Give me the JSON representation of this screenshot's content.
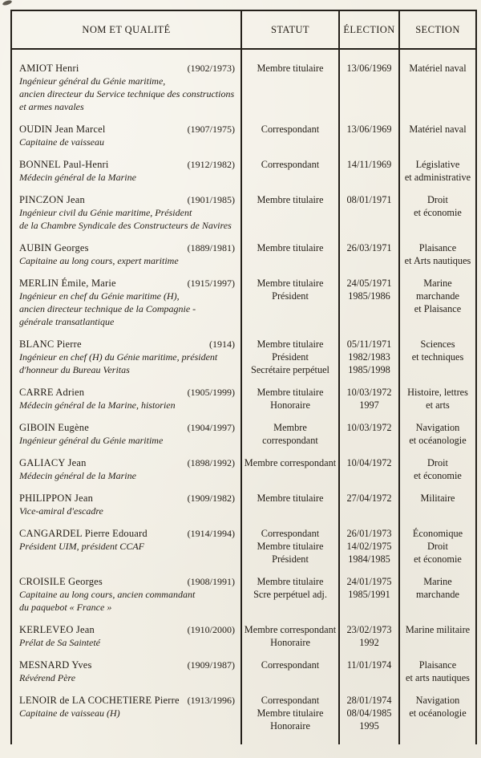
{
  "colors": {
    "paper": "#f3f0e6",
    "ink": "#221c15",
    "line": "#24201a"
  },
  "table": {
    "columns": [
      "NOM ET QUALITÉ",
      "STATUT",
      "ÉLECTION",
      "SECTION"
    ],
    "rows": [
      {
        "name": "AMIOT Henri",
        "years": "(1902/1973)",
        "description": [
          "Ingénieur général du Génie maritime,",
          "ancien directeur du Service technique des constructions",
          "et armes navales"
        ],
        "statut": [
          "Membre titulaire"
        ],
        "election": [
          "13/06/1969"
        ],
        "section": [
          "Matériel naval"
        ]
      },
      {
        "name": "OUDIN Jean Marcel",
        "years": "(1907/1975)",
        "description": [
          "Capitaine de vaisseau"
        ],
        "statut": [
          "Correspondant"
        ],
        "election": [
          "13/06/1969"
        ],
        "section": [
          "Matériel naval"
        ]
      },
      {
        "name": "BONNEL Paul-Henri",
        "years": "(1912/1982)",
        "description": [
          "Médecin général de la Marine"
        ],
        "statut": [
          "Correspondant"
        ],
        "election": [
          "14/11/1969"
        ],
        "section": [
          "Législative",
          "et administrative"
        ]
      },
      {
        "name": "PINCZON Jean",
        "years": "(1901/1985)",
        "description": [
          "Ingénieur civil du Génie maritime, Président",
          "de la Chambre Syndicale des Constructeurs de Navires"
        ],
        "statut": [
          "Membre titulaire"
        ],
        "election": [
          "08/01/1971"
        ],
        "section": [
          "Droit",
          "et économie"
        ]
      },
      {
        "name": "AUBIN Georges",
        "years": "(1889/1981)",
        "description": [
          "Capitaine au long cours, expert maritime"
        ],
        "statut": [
          "Membre titulaire"
        ],
        "election": [
          "26/03/1971"
        ],
        "section": [
          "Plaisance",
          "et Arts nautiques"
        ]
      },
      {
        "name": "MERLIN Émile, Marie",
        "years": "(1915/1997)",
        "description": [
          "Ingénieur en chef du Génie maritime (H),",
          "ancien directeur technique de la Compagnie -",
          "générale transatlantique"
        ],
        "statut": [
          "Membre titulaire",
          "Président"
        ],
        "election": [
          "24/05/1971",
          "1985/1986"
        ],
        "section": [
          "Marine",
          "marchande",
          "et Plaisance"
        ]
      },
      {
        "name": "BLANC Pierre",
        "years": "(1914)",
        "description": [
          "Ingénieur en chef (H) du Génie maritime, président",
          "d'honneur du Bureau Veritas"
        ],
        "statut": [
          "Membre titulaire",
          "Président",
          "Secrétaire perpétuel"
        ],
        "election": [
          "05/11/1971",
          "1982/1983",
          "1985/1998"
        ],
        "section": [
          "Sciences",
          "et techniques"
        ]
      },
      {
        "name": "CARRE Adrien",
        "years": "(1905/1999)",
        "description": [
          "Médecin général de la Marine, historien"
        ],
        "statut": [
          "Membre titulaire",
          "Honoraire"
        ],
        "election": [
          "10/03/1972",
          "1997"
        ],
        "section": [
          "Histoire, lettres",
          "et arts"
        ]
      },
      {
        "name": "GIBOIN Eugène",
        "years": "(1904/1997)",
        "description": [
          "Ingénieur général du Génie maritime"
        ],
        "statut": [
          "Membre",
          "correspondant"
        ],
        "election": [
          "10/03/1972"
        ],
        "section": [
          "Navigation",
          "et océanologie"
        ]
      },
      {
        "name": "GALIACY Jean",
        "years": "(1898/1992)",
        "description": [
          "Médecin général de la Marine"
        ],
        "statut": [
          "Membre correspondant"
        ],
        "election": [
          "10/04/1972"
        ],
        "section": [
          "Droit",
          "et économie"
        ]
      },
      {
        "name": "PHILIPPON Jean",
        "years": "(1909/1982)",
        "description": [
          "Vice-amiral d'escadre"
        ],
        "statut": [
          "Membre titulaire"
        ],
        "election": [
          "27/04/1972"
        ],
        "section": [
          "Militaire"
        ]
      },
      {
        "name": "CANGARDEL Pierre Edouard",
        "years": "(1914/1994)",
        "description": [
          "Président UIM, président CCAF"
        ],
        "statut": [
          "Correspondant",
          "Membre titulaire",
          "Président"
        ],
        "election": [
          "26/01/1973",
          "14/02/1975",
          "1984/1985"
        ],
        "section": [
          "Économique",
          "Droit",
          "et économie"
        ]
      },
      {
        "name": "CROISILE Georges",
        "years": "(1908/1991)",
        "description": [
          "Capitaine au long cours, ancien commandant",
          "du paquebot « France »"
        ],
        "statut": [
          "Membre titulaire",
          "Scre perpétuel adj."
        ],
        "election": [
          "24/01/1975",
          "1985/1991"
        ],
        "section": [
          "Marine",
          "marchande"
        ]
      },
      {
        "name": "KERLEVEO Jean",
        "years": "(1910/2000)",
        "description": [
          "Prélat de Sa Sainteté"
        ],
        "statut": [
          "Membre correspondant",
          "Honoraire"
        ],
        "election": [
          "23/02/1973",
          "1992"
        ],
        "section": [
          "Marine militaire"
        ]
      },
      {
        "name": "MESNARD Yves",
        "years": "(1909/1987)",
        "description": [
          "Révérend Père"
        ],
        "statut": [
          "Correspondant"
        ],
        "election": [
          "11/01/1974"
        ],
        "section": [
          "Plaisance",
          "et arts nautiques"
        ]
      },
      {
        "name": "LENOIR de LA COCHETIERE Pierre",
        "years": "(1913/1996)",
        "description": [
          "Capitaine de vaisseau (H)"
        ],
        "statut": [
          "Correspondant",
          "Membre titulaire",
          "Honoraire"
        ],
        "election": [
          "28/01/1974",
          "08/04/1985",
          "1995"
        ],
        "section": [
          "Navigation",
          "et océanologie"
        ]
      }
    ]
  }
}
